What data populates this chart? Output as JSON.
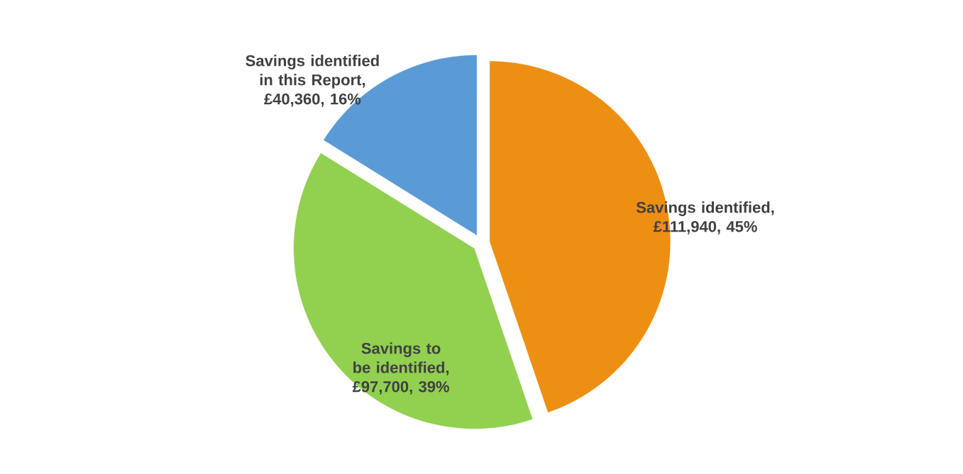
{
  "chart_data": {
    "type": "pie",
    "categories": [
      "Savings identified",
      "Savings to be identified",
      "Savings identified in this Report"
    ],
    "values": [
      111940,
      97700,
      40360
    ],
    "value_labels": [
      ", £111,940, 45%",
      ", £97,700, 39%",
      ", £40,360, 16%"
    ],
    "colors": [
      "#ed8f13",
      "#92d050",
      "#5b9bd5"
    ]
  }
}
